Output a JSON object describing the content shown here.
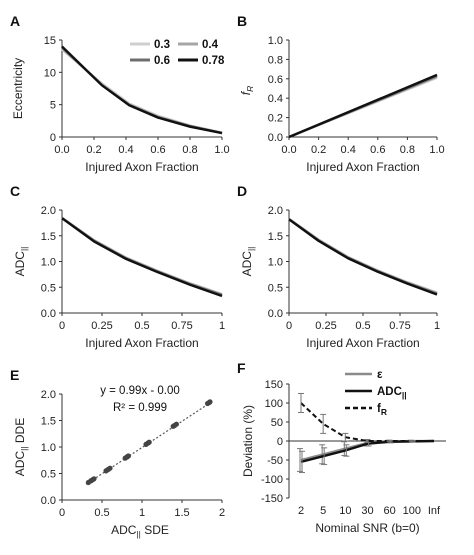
{
  "colors": {
    "s03": "#cfcfcf",
    "s04": "#a6a6a6",
    "s06": "#6e6e6e",
    "s078": "#111111",
    "axis": "#333333"
  },
  "chart_data": [
    {
      "panel": "A",
      "type": "line",
      "xlabel": "Injured Axon Fraction",
      "ylabel": "Eccentricity",
      "xlim": [
        0,
        1
      ],
      "ylim": [
        0,
        15
      ],
      "xticks": [
        "0.0",
        "0.2",
        "0.4",
        "0.6",
        "0.8",
        "1.0"
      ],
      "yticks": [
        "0",
        "5",
        "10",
        "15"
      ],
      "legend": {
        "placement": "top-right",
        "entries": [
          "0.3",
          "0.4",
          "0.6",
          "0.78"
        ]
      },
      "x": [
        0,
        0.25,
        0.42,
        0.6,
        0.8,
        1.0
      ],
      "series": [
        {
          "name": "0.3",
          "values": [
            13.5,
            8.3,
            5.2,
            3.3,
            1.8,
            0.7
          ]
        },
        {
          "name": "0.4",
          "values": [
            13.7,
            8.1,
            5.0,
            3.1,
            1.7,
            0.6
          ]
        },
        {
          "name": "0.6",
          "values": [
            13.9,
            8.0,
            5.0,
            3.1,
            1.7,
            0.6
          ]
        },
        {
          "name": "0.78",
          "values": [
            14.0,
            8.0,
            4.9,
            3.0,
            1.6,
            0.6
          ]
        }
      ]
    },
    {
      "panel": "B",
      "type": "line",
      "xlabel": "Injured Axon Fraction",
      "ylabel": "fR",
      "xlim": [
        0,
        1
      ],
      "ylim": [
        0,
        1
      ],
      "xticks": [
        "0.0",
        "0.2",
        "0.4",
        "0.6",
        "0.8",
        "1.0"
      ],
      "yticks": [
        "0.0",
        "0.2",
        "0.4",
        "0.6",
        "0.8",
        "1.0"
      ],
      "x": [
        0,
        1
      ],
      "series": [
        {
          "name": "0.3",
          "values": [
            0,
            0.61
          ]
        },
        {
          "name": "0.4",
          "values": [
            0,
            0.62
          ]
        },
        {
          "name": "0.6",
          "values": [
            0,
            0.63
          ]
        },
        {
          "name": "0.78",
          "values": [
            0,
            0.64
          ]
        }
      ]
    },
    {
      "panel": "C",
      "type": "line",
      "xlabel": "Injured Axon Fraction",
      "ylabel": "ADC||",
      "xlim": [
        0,
        1
      ],
      "ylim": [
        0,
        2
      ],
      "xticks": [
        "0",
        "0.25",
        "0.5",
        "0.75",
        "1"
      ],
      "yticks": [
        "0.0",
        "0.5",
        "1.0",
        "1.5",
        "2.0"
      ],
      "x": [
        0,
        0.2,
        0.4,
        0.6,
        0.8,
        1.0
      ],
      "series": [
        {
          "name": "0.3",
          "values": [
            1.85,
            1.42,
            1.08,
            0.82,
            0.58,
            0.37
          ]
        },
        {
          "name": "0.4",
          "values": [
            1.85,
            1.41,
            1.07,
            0.81,
            0.57,
            0.36
          ]
        },
        {
          "name": "0.6",
          "values": [
            1.84,
            1.4,
            1.06,
            0.8,
            0.56,
            0.35
          ]
        },
        {
          "name": "0.78",
          "values": [
            1.84,
            1.39,
            1.05,
            0.79,
            0.55,
            0.33
          ]
        }
      ]
    },
    {
      "panel": "D",
      "type": "line",
      "xlabel": "Injured Axon Fraction",
      "ylabel": "ADC||",
      "xlim": [
        0,
        1
      ],
      "ylim": [
        0,
        2
      ],
      "xticks": [
        "0",
        "0.25",
        "0.5",
        "0.75",
        "1"
      ],
      "yticks": [
        "0.0",
        "0.5",
        "1.0",
        "1.5",
        "2.0"
      ],
      "x": [
        0,
        0.2,
        0.4,
        0.6,
        0.8,
        1.0
      ],
      "series": [
        {
          "name": "0.3",
          "values": [
            1.83,
            1.43,
            1.09,
            0.83,
            0.6,
            0.4
          ]
        },
        {
          "name": "0.4",
          "values": [
            1.83,
            1.42,
            1.08,
            0.82,
            0.59,
            0.39
          ]
        },
        {
          "name": "0.6",
          "values": [
            1.82,
            1.41,
            1.07,
            0.81,
            0.58,
            0.37
          ]
        },
        {
          "name": "0.78",
          "values": [
            1.82,
            1.4,
            1.06,
            0.8,
            0.57,
            0.36
          ]
        }
      ]
    },
    {
      "panel": "E",
      "type": "scatter",
      "xlabel": "ADC|| SDE",
      "ylabel": "ADC|| DDE",
      "xlim": [
        0,
        2
      ],
      "ylim": [
        0,
        2
      ],
      "xticks": [
        "0",
        "0.5",
        "1",
        "1.5",
        "2"
      ],
      "yticks": [
        "0.0",
        "0.5",
        "1.0",
        "1.5",
        "2.0"
      ],
      "equation": "y = 0.99x - 0.00",
      "r2": "R² = 0.999",
      "points": [
        [
          0.33,
          0.33
        ],
        [
          0.36,
          0.36
        ],
        [
          0.37,
          0.37
        ],
        [
          0.39,
          0.39
        ],
        [
          0.4,
          0.4
        ],
        [
          0.55,
          0.55
        ],
        [
          0.57,
          0.57
        ],
        [
          0.58,
          0.58
        ],
        [
          0.6,
          0.6
        ],
        [
          0.79,
          0.79
        ],
        [
          0.81,
          0.81
        ],
        [
          0.82,
          0.82
        ],
        [
          0.83,
          0.83
        ],
        [
          1.05,
          1.05
        ],
        [
          1.07,
          1.07
        ],
        [
          1.08,
          1.08
        ],
        [
          1.09,
          1.09
        ],
        [
          1.39,
          1.39
        ],
        [
          1.4,
          1.4
        ],
        [
          1.41,
          1.41
        ],
        [
          1.43,
          1.43
        ],
        [
          1.82,
          1.82
        ],
        [
          1.84,
          1.84
        ],
        [
          1.85,
          1.85
        ]
      ],
      "fit": {
        "slope": 0.99,
        "intercept": 0.0
      }
    },
    {
      "panel": "F",
      "type": "line",
      "xlabel": "Nominal SNR (b=0)",
      "ylabel": "Deviation (%)",
      "ylim": [
        -150,
        150
      ],
      "categories": [
        "2",
        "5",
        "10",
        "30",
        "60",
        "100",
        "Inf"
      ],
      "yticks": [
        "-150",
        "-100",
        "-50",
        "0",
        "50",
        "100",
        "150"
      ],
      "legend": {
        "placement": "top-right",
        "entries": [
          "ε",
          "ADC",
          "f"
        ]
      },
      "series": [
        {
          "name": "ε",
          "style": "solid-gray",
          "values": [
            -50,
            -35,
            -20,
            -5,
            -1,
            0,
            0
          ],
          "err": [
            30,
            25,
            18,
            8,
            3,
            2,
            0
          ]
        },
        {
          "name": "ADC||",
          "style": "solid-black",
          "values": [
            -55,
            -40,
            -25,
            -7,
            -2,
            -1,
            0
          ],
          "err": [
            28,
            22,
            15,
            6,
            3,
            2,
            0
          ]
        },
        {
          "name": "fR",
          "style": "dashed-black",
          "values": [
            100,
            45,
            10,
            0,
            0,
            0,
            0
          ],
          "err": [
            25,
            25,
            10,
            4,
            2,
            1,
            0
          ]
        }
      ]
    }
  ]
}
